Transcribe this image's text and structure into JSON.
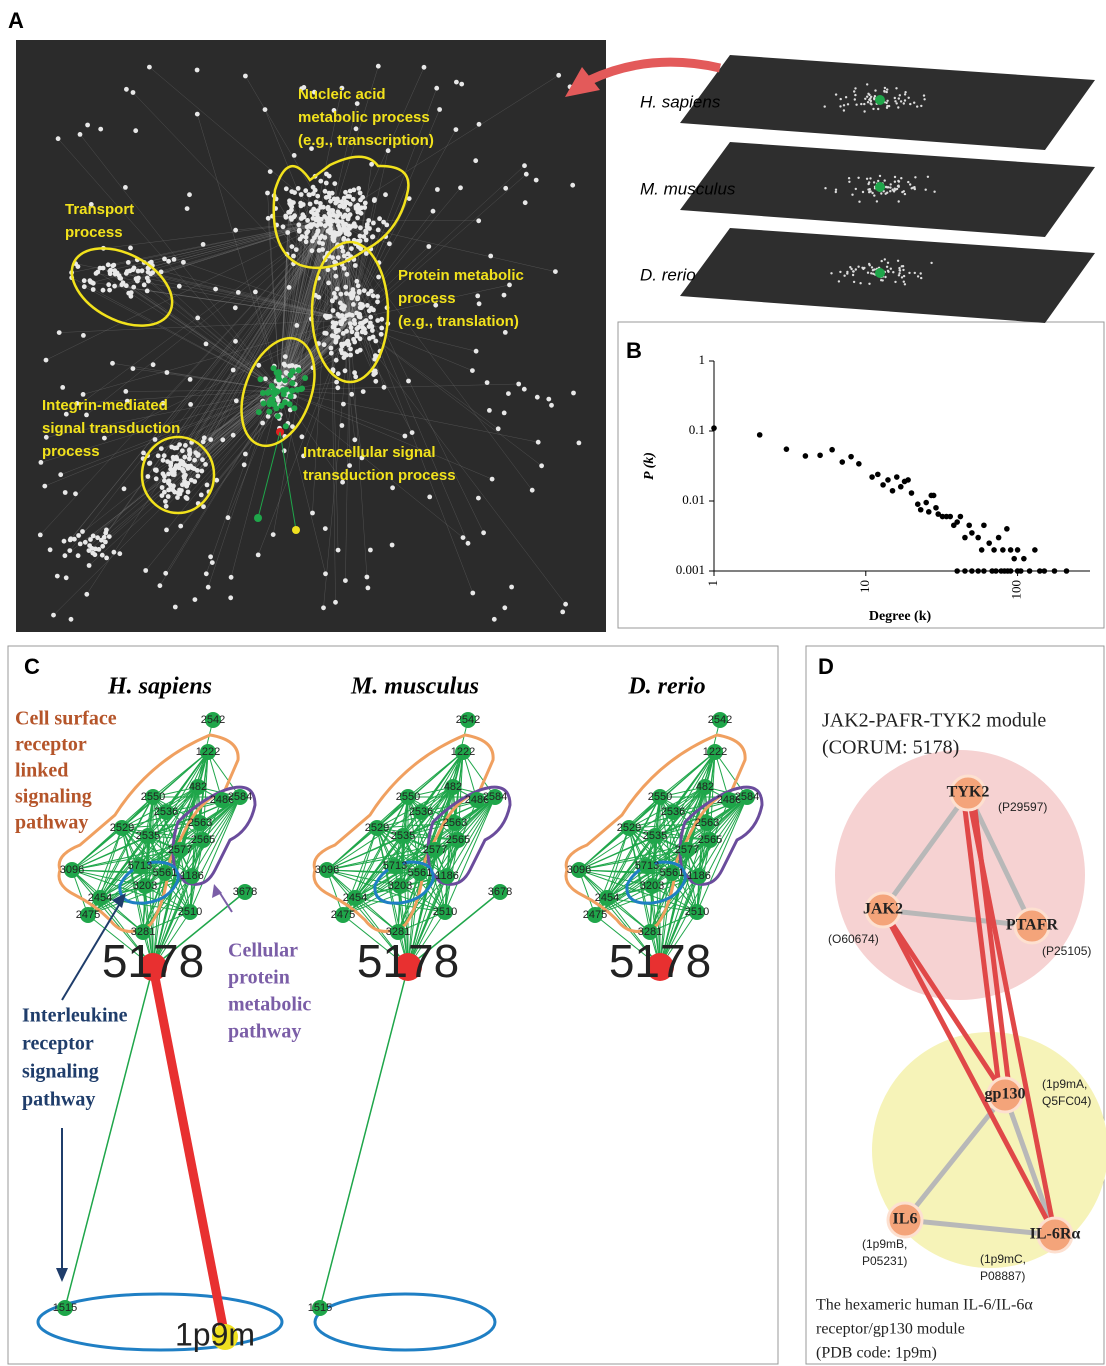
{
  "panel_labels": [
    "A",
    "B",
    "C",
    "D"
  ],
  "panel_a": {
    "regions": [
      {
        "lines": [
          "Nucleic acid",
          "metabolic process",
          "(e.g., transcription)"
        ]
      },
      {
        "lines": [
          "Transport",
          "process"
        ]
      },
      {
        "lines": [
          "Protein metabolic",
          "process",
          "(e.g., translation)"
        ]
      },
      {
        "lines": [
          "Integrin-mediated",
          "signal transduction",
          "process"
        ]
      },
      {
        "lines": [
          "Intracellular signal",
          "transduction process"
        ]
      }
    ],
    "species": [
      "H. sapiens",
      "M. musculus",
      "D. rerio"
    ]
  },
  "chart_data": {
    "type": "scatter",
    "xlabel": "Degree (k)",
    "ylabel": "P (k)",
    "x": [
      1,
      2,
      3,
      4,
      5,
      6,
      7,
      8,
      9,
      11,
      12,
      13,
      14,
      15,
      16,
      17,
      18,
      19,
      20,
      22,
      23,
      25,
      26,
      27,
      28,
      29,
      30,
      32,
      34,
      36,
      38,
      40,
      42,
      45,
      48,
      50,
      55,
      58,
      60,
      65,
      70,
      75,
      80,
      85,
      90,
      95,
      100,
      110,
      130,
      150,
      40,
      45,
      50,
      55,
      60,
      68,
      72,
      78,
      82,
      86,
      90,
      100,
      105,
      120,
      140,
      175,
      210
    ],
    "values": [
      0.11,
      0.088,
      0.055,
      0.044,
      0.045,
      0.054,
      0.036,
      0.043,
      0.034,
      0.022,
      0.024,
      0.017,
      0.02,
      0.014,
      0.022,
      0.016,
      0.019,
      0.02,
      0.013,
      0.009,
      0.0075,
      0.0095,
      0.007,
      0.012,
      0.012,
      0.008,
      0.0065,
      0.006,
      0.006,
      0.006,
      0.0045,
      0.005,
      0.006,
      0.003,
      0.0045,
      0.0035,
      0.003,
      0.002,
      0.0045,
      0.0025,
      0.002,
      0.003,
      0.002,
      0.004,
      0.002,
      0.0015,
      0.002,
      0.0015,
      0.002,
      0.001,
      0.001,
      0.001,
      0.001,
      0.001,
      0.001,
      0.001,
      0.001,
      0.001,
      0.001,
      0.001,
      0.001,
      0.001,
      0.001,
      0.001,
      0.001,
      0.001,
      0.001
    ],
    "color": "#000000",
    "xlim": [
      1,
      300
    ],
    "ylim": [
      0.001,
      1
    ],
    "xticks": [
      1,
      10,
      100
    ],
    "yticks": [
      0.001,
      0.01,
      0.1,
      1
    ],
    "xscale": "log",
    "yscale": "log"
  },
  "panel_c": {
    "networks": [
      {
        "name": "H. sapiens",
        "extra_nodes": [
          "3678",
          "1515",
          "1p9m"
        ]
      },
      {
        "name": "M. musculus",
        "extra_nodes": [
          "3678",
          "1515"
        ]
      },
      {
        "name": "D. rerio",
        "extra_nodes": []
      }
    ],
    "hub": "5178",
    "core_nodes": [
      "2542",
      "1222",
      "482",
      "2486",
      "2584",
      "2550",
      "2536",
      "2529",
      "2535",
      "2563",
      "2565",
      "2577",
      "5713",
      "3096",
      "3203",
      "5561",
      "1186",
      "2454",
      "2475",
      "2510",
      "3281"
    ],
    "annotations": [
      {
        "lines": [
          "Cell surface",
          "receptor",
          "linked",
          "signaling",
          "pathway"
        ]
      },
      {
        "lines": [
          "Cellular",
          "protein",
          "metabolic",
          "pathway"
        ]
      },
      {
        "lines": [
          "Interleukine",
          "receptor",
          "signaling",
          "pathway"
        ]
      }
    ]
  },
  "panel_d": {
    "title": [
      "JAK2-PAFR-TYK2 module",
      "(CORUM: 5178)"
    ],
    "nodes": [
      {
        "label": "TYK2",
        "ids": [
          "(P29597)"
        ]
      },
      {
        "label": "JAK2",
        "ids": [
          "(O60674)"
        ]
      },
      {
        "label": "PTAFR",
        "ids": [
          "(P25105)"
        ]
      },
      {
        "label": "gp130",
        "ids": [
          "(1p9mA,",
          "Q5FC04)"
        ]
      },
      {
        "label": "IL6",
        "ids": [
          "(1p9mB,",
          "P05231)"
        ]
      },
      {
        "label": "IL-6Rα",
        "ids": [
          "(1p9mC,",
          "P08887)"
        ]
      }
    ],
    "caption": [
      "The hexameric human IL-6/IL-6α",
      "receptor/gp130 module",
      "(PDB code: 1p9m)"
    ]
  }
}
